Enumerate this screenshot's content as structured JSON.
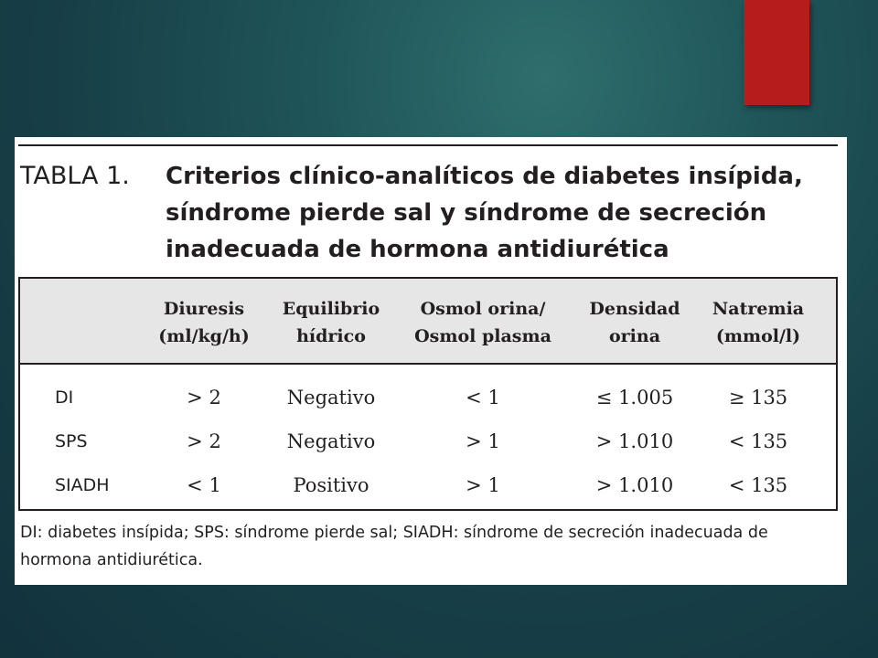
{
  "colors": {
    "background": "#1a4a52",
    "accent": "#b51d1d",
    "panel": "#ffffff",
    "header_band": "#e6e6e7",
    "text": "#231f20"
  },
  "table": {
    "label": "TABLA 1.",
    "title": "Criterios clínico-analíticos de diabetes insípida, síndrome pierde sal y síndrome de secreción inadecuada de hormona antidiurética",
    "headers": [
      {
        "line1": "Diuresis",
        "line2": "(ml/kg/h)"
      },
      {
        "line1": "Equilibrio",
        "line2": "hídrico"
      },
      {
        "line1": "Osmol orina/",
        "line2": "Osmol plasma"
      },
      {
        "line1": "Densidad",
        "line2": "orina"
      },
      {
        "line1": "Natremia",
        "line2": "(mmol/l)"
      }
    ],
    "rows": [
      {
        "label": "DI",
        "cells": [
          "> 2",
          "Negativo",
          "< 1",
          "≤ 1.005",
          "≥ 135"
        ]
      },
      {
        "label": "SPS",
        "cells": [
          "> 2",
          "Negativo",
          "> 1",
          "> 1.010",
          "< 135"
        ]
      },
      {
        "label": "SIADH",
        "cells": [
          "< 1",
          "Positivo",
          "> 1",
          "> 1.010",
          "< 135"
        ]
      }
    ],
    "footnote": "DI: diabetes insípida; SPS: síndrome pierde sal; SIADH: síndrome de secreción inadecuada de hormona antidiurética."
  }
}
